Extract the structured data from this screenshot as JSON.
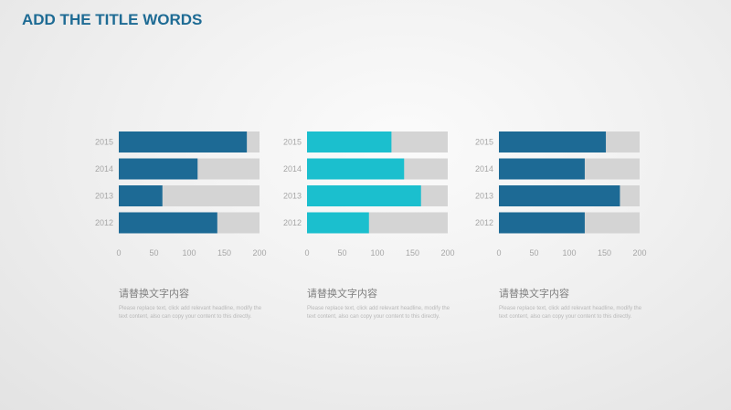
{
  "title": "ADD THE TITLE WORDS",
  "colors": {
    "title": "#1e6b94",
    "track": "#d4d4d4",
    "axis_text": "#a6a6a6"
  },
  "chart_data": [
    {
      "type": "bar",
      "orientation": "horizontal",
      "stacked_background_max": 200,
      "categories": [
        "2015",
        "2014",
        "2013",
        "2012"
      ],
      "values": [
        182,
        112,
        62,
        140
      ],
      "xlim": [
        0,
        200
      ],
      "x_ticks": [
        "0",
        "50",
        "100",
        "150",
        "200"
      ],
      "bar_color": "#1d6a95"
    },
    {
      "type": "bar",
      "orientation": "horizontal",
      "stacked_background_max": 200,
      "categories": [
        "2015",
        "2014",
        "2013",
        "2012"
      ],
      "values": [
        120,
        138,
        162,
        88
      ],
      "xlim": [
        0,
        200
      ],
      "x_ticks": [
        "0",
        "50",
        "100",
        "150",
        "200"
      ],
      "bar_color": "#1bbfce"
    },
    {
      "type": "bar",
      "orientation": "horizontal",
      "stacked_background_max": 200,
      "categories": [
        "2015",
        "2014",
        "2013",
        "2012"
      ],
      "values": [
        152,
        122,
        172,
        122
      ],
      "xlim": [
        0,
        200
      ],
      "x_ticks": [
        "0",
        "50",
        "100",
        "150",
        "200"
      ],
      "bar_color": "#1d6a95"
    }
  ],
  "captions": [
    {
      "heading": "请替换文字内容",
      "body": "Please replace text, click add relevant headline, modify the text content, also can copy your content to this directly."
    },
    {
      "heading": "请替换文字内容",
      "body": "Please replace text, click add relevant headline, modify the text content, also can copy your content to this directly."
    },
    {
      "heading": "请替换文字内容",
      "body": "Please replace text, click add relevant headline, modify the text content, also can copy your content to this directly."
    }
  ]
}
